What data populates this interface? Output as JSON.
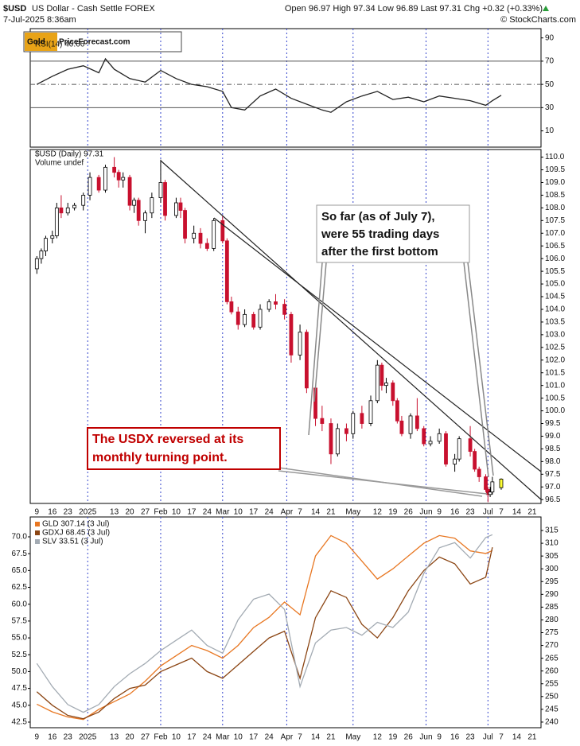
{
  "header": {
    "symbol": "$USD",
    "name": "US Dollar - Cash Settle FOREX",
    "datetime": "7-Jul-2025 8:36am",
    "quote": "Open 96.97  High 97.34  Low 96.89  Last 97.31  Chg +0.32 (+0.33%)",
    "source": "© StockCharts.com"
  },
  "logo": {
    "gold": "Gold",
    "rest": "PriceForecast.com"
  },
  "annotations": {
    "callout": [
      "So far (as of July 7),",
      "were 55 trading days",
      "after the first bottom"
    ],
    "reversal": [
      "The USDX reversed at its",
      "monthly turning point."
    ]
  },
  "chart_data": [
    {
      "type": "line",
      "title": "RSI(14) 40.66",
      "ylim": [
        -4,
        98
      ],
      "yticks": [
        10,
        30,
        50,
        70,
        90
      ],
      "hlines": [
        {
          "value": 70,
          "style": "solid"
        },
        {
          "value": 50,
          "style": "dashdot"
        },
        {
          "value": 30,
          "style": "solid"
        }
      ],
      "x": [
        0,
        7,
        14,
        21,
        28,
        31,
        35,
        42,
        49,
        56,
        63,
        70,
        77,
        84,
        88,
        94,
        101,
        108,
        115,
        122,
        129,
        133,
        140,
        147,
        154,
        161,
        168,
        175,
        182,
        189,
        196,
        203,
        206,
        210
      ],
      "series": [
        {
          "name": "RSI(14)",
          "color": "#222222",
          "values": [
            50,
            57,
            63,
            66,
            60,
            72,
            63,
            55,
            52,
            62,
            55,
            50,
            48,
            44,
            30,
            28,
            40,
            46,
            38,
            33,
            28,
            26,
            35,
            40,
            44,
            37,
            39,
            35,
            40,
            38,
            36,
            32,
            36,
            40.66
          ]
        }
      ]
    },
    {
      "type": "candlestick",
      "title": "$USD (Daily) 97.31",
      "subtitle": "Volume undef",
      "up_color": "#ffffff",
      "down_color": "#c8102e",
      "last_color": "#ffff33",
      "xlim": [
        -3,
        228
      ],
      "xticks": [
        {
          "value": 0,
          "label": "9"
        },
        {
          "value": 7,
          "label": "16"
        },
        {
          "value": 14,
          "label": "23"
        },
        {
          "value": 23,
          "label": "2025",
          "major": true
        },
        {
          "value": 35,
          "label": "13"
        },
        {
          "value": 42,
          "label": "20"
        },
        {
          "value": 49,
          "label": "27"
        },
        {
          "value": 56,
          "label": "Feb",
          "major": true
        },
        {
          "value": 63,
          "label": "10"
        },
        {
          "value": 70,
          "label": "17"
        },
        {
          "value": 77,
          "label": "24"
        },
        {
          "value": 84,
          "label": "Mar",
          "major": true
        },
        {
          "value": 91,
          "label": "10"
        },
        {
          "value": 98,
          "label": "17"
        },
        {
          "value": 105,
          "label": "24"
        },
        {
          "value": 113,
          "label": "Apr",
          "major": true
        },
        {
          "value": 119,
          "label": "7"
        },
        {
          "value": 126,
          "label": "14"
        },
        {
          "value": 133,
          "label": "21"
        },
        {
          "value": 143,
          "label": "May",
          "major": true
        },
        {
          "value": 154,
          "label": "12"
        },
        {
          "value": 161,
          "label": "19"
        },
        {
          "value": 168,
          "label": "26"
        },
        {
          "value": 176,
          "label": "Jun",
          "major": true
        },
        {
          "value": 182,
          "label": "9"
        },
        {
          "value": 189,
          "label": "16"
        },
        {
          "value": 196,
          "label": "23"
        },
        {
          "value": 204,
          "label": "Jul",
          "major": true
        },
        {
          "value": 210,
          "label": "7"
        },
        {
          "value": 217,
          "label": "14"
        },
        {
          "value": 224,
          "label": "21"
        }
      ],
      "ylim": [
        96.35,
        110.3
      ],
      "yticks": [
        96.5,
        {
          "value": 97,
          "label": "97.0"
        },
        97.5,
        {
          "value": 98,
          "label": "98.0"
        },
        98.5,
        {
          "value": 99,
          "label": "99.0"
        },
        99.5,
        {
          "value": 100,
          "label": "100.0"
        },
        100.5,
        {
          "value": 101,
          "label": "101.0"
        },
        101.5,
        {
          "value": 102,
          "label": "102.0"
        },
        102.5,
        {
          "value": 103,
          "label": "103.0"
        },
        103.5,
        {
          "value": 104,
          "label": "104.0"
        },
        104.5,
        {
          "value": 105,
          "label": "105.0"
        },
        105.5,
        {
          "value": 106,
          "label": "106.0"
        },
        106.5,
        {
          "value": 107,
          "label": "107.0"
        },
        107.5,
        {
          "value": 108,
          "label": "108.0"
        },
        108.5,
        {
          "value": 109,
          "label": "109.0"
        },
        109.5,
        {
          "value": 110,
          "label": "110.0"
        }
      ],
      "candles": {
        "x": [
          0,
          2,
          4,
          7,
          9,
          11,
          14,
          17,
          21,
          24,
          28,
          31,
          35,
          37,
          39,
          42,
          44,
          46,
          49,
          52,
          56,
          58,
          63,
          65,
          67,
          71,
          74,
          77,
          80,
          84,
          86,
          88,
          91,
          94,
          98,
          101,
          105,
          108,
          112,
          115,
          119,
          122,
          126,
          129,
          133,
          136,
          140,
          143,
          147,
          151,
          154,
          156,
          158,
          161,
          163,
          165,
          169,
          172,
          175,
          178,
          182,
          185,
          189,
          191,
          196,
          198,
          200,
          203,
          204,
          205,
          206,
          210
        ],
        "open": [
          105.6,
          106.0,
          106.3,
          106.8,
          106.9,
          108.0,
          107.8,
          108.0,
          108.1,
          108.5,
          109.2,
          108.7,
          109.6,
          109.4,
          109.1,
          109.2,
          108.1,
          108.3,
          107.5,
          107.8,
          108.4,
          109.0,
          107.7,
          108.2,
          107.9,
          106.8,
          107.0,
          106.6,
          106.4,
          107.5,
          106.7,
          104.3,
          103.9,
          103.4,
          103.8,
          103.3,
          104.0,
          104.3,
          104.2,
          103.8,
          102.2,
          103.1,
          100.9,
          99.7,
          99.5,
          98.3,
          99.3,
          99.1,
          99.9,
          99.5,
          100.4,
          101.8,
          101.0,
          101.1,
          100.4,
          99.6,
          99.1,
          99.8,
          99.3,
          98.7,
          98.8,
          99.1,
          97.9,
          98.1,
          98.9,
          98.4,
          97.7,
          97.4,
          96.9,
          96.7,
          96.8,
          96.97
        ],
        "high": [
          106.1,
          106.4,
          106.9,
          107.1,
          108.2,
          108.5,
          108.2,
          108.2,
          108.6,
          109.4,
          109.3,
          109.7,
          110.0,
          109.5,
          109.4,
          109.3,
          108.4,
          108.4,
          107.9,
          108.6,
          109.9,
          109.1,
          108.4,
          108.4,
          108.0,
          107.3,
          107.2,
          106.8,
          107.6,
          107.7,
          106.8,
          104.5,
          104.1,
          104.0,
          103.9,
          104.2,
          104.4,
          104.6,
          104.4,
          103.9,
          103.4,
          103.2,
          101.0,
          100.2,
          99.7,
          99.5,
          99.5,
          100.0,
          100.2,
          100.6,
          102.0,
          101.9,
          101.3,
          101.2,
          100.5,
          99.8,
          99.9,
          100.5,
          99.4,
          99.0,
          99.3,
          99.2,
          98.3,
          99.0,
          99.4,
          98.5,
          97.8,
          97.5,
          97.0,
          97.0,
          97.4,
          97.34
        ],
        "low": [
          105.4,
          105.8,
          106.1,
          106.6,
          106.8,
          107.6,
          107.7,
          107.9,
          107.9,
          108.3,
          108.6,
          108.6,
          109.2,
          108.8,
          108.8,
          107.9,
          107.8,
          107.3,
          107.0,
          107.6,
          108.2,
          107.5,
          107.6,
          107.6,
          106.6,
          106.6,
          106.4,
          106.3,
          106.3,
          106.6,
          104.2,
          103.8,
          103.2,
          103.3,
          103.2,
          103.2,
          103.9,
          104.0,
          103.6,
          101.9,
          102.0,
          100.7,
          99.4,
          99.2,
          97.9,
          98.2,
          98.8,
          98.9,
          99.3,
          99.4,
          100.3,
          100.8,
          100.7,
          100.2,
          99.5,
          99.0,
          98.9,
          99.2,
          98.6,
          98.6,
          98.7,
          97.8,
          97.6,
          98.0,
          98.2,
          97.6,
          97.2,
          96.8,
          96.4,
          96.6,
          96.7,
          96.89
        ],
        "close": [
          106.0,
          106.3,
          106.8,
          106.9,
          108.0,
          107.8,
          108.0,
          108.1,
          108.5,
          109.2,
          108.7,
          109.6,
          109.4,
          109.1,
          109.2,
          108.1,
          108.3,
          107.5,
          107.8,
          108.4,
          109.0,
          107.7,
          108.2,
          107.9,
          106.8,
          107.0,
          106.6,
          106.4,
          107.5,
          106.7,
          104.3,
          103.9,
          103.4,
          103.8,
          103.3,
          104.0,
          104.3,
          104.2,
          103.8,
          102.2,
          103.1,
          100.9,
          99.7,
          99.5,
          98.3,
          99.3,
          99.1,
          99.9,
          99.5,
          100.4,
          101.8,
          101.0,
          101.1,
          100.4,
          99.6,
          99.1,
          99.8,
          99.3,
          98.7,
          98.8,
          99.1,
          97.9,
          98.1,
          98.9,
          98.4,
          97.7,
          97.4,
          96.9,
          96.7,
          96.8,
          97.2,
          97.31
        ]
      }
    },
    {
      "type": "line",
      "ylim": [
        41.67,
        72.95
      ],
      "yticks": [
        42.5,
        {
          "value": 45,
          "label": "45.0"
        },
        47.5,
        {
          "value": 50,
          "label": "50.0"
        },
        52.5,
        {
          "value": 55,
          "label": "55.0"
        },
        57.5,
        {
          "value": 60,
          "label": "60.0"
        },
        62.5,
        {
          "value": 65,
          "label": "65.0"
        },
        67.5,
        {
          "value": 70,
          "label": "70.0"
        }
      ],
      "y2lim": [
        237.8,
        320.3
      ],
      "y2ticks": [
        240,
        245,
        250,
        255,
        260,
        265,
        270,
        275,
        280,
        285,
        290,
        295,
        300,
        305,
        310,
        315
      ],
      "y3lim": [
        26.0,
        34.2
      ],
      "x": [
        0,
        7,
        14,
        21,
        28,
        35,
        42,
        49,
        56,
        63,
        70,
        77,
        84,
        91,
        98,
        105,
        112,
        119,
        126,
        133,
        140,
        147,
        154,
        161,
        168,
        175,
        182,
        189,
        196,
        203,
        206
      ],
      "series": [
        {
          "name": "GLD 307.14 (3 Jul)",
          "color": "#e87722",
          "axis": "y2",
          "values": [
            247,
            244,
            242,
            241,
            245,
            248,
            251,
            256,
            262,
            266,
            270,
            268,
            265,
            270,
            277,
            281,
            287,
            282,
            305,
            313,
            310,
            303,
            296,
            300,
            305,
            310,
            313,
            312,
            307,
            306,
            307.14
          ]
        },
        {
          "name": "GDXJ 68.45 (3 Jul)",
          "color": "#8b4513",
          "values": [
            47,
            45,
            43.5,
            43,
            44,
            46,
            47.5,
            48,
            50,
            51,
            52,
            50,
            49,
            51,
            53,
            55,
            56,
            49,
            58,
            62,
            61,
            57,
            55,
            58,
            62,
            65,
            67,
            66,
            63,
            64,
            68.45
          ]
        },
        {
          "name": "SLV 33.51 (3 Jul)",
          "color": "#a3abb3",
          "axis": "y3",
          "values": [
            28.5,
            27.6,
            26.9,
            26.6,
            26.9,
            27.6,
            28.1,
            28.5,
            29.0,
            29.4,
            29.8,
            29.2,
            28.9,
            30.2,
            31.0,
            31.2,
            30.6,
            27.6,
            29.3,
            29.8,
            29.9,
            29.6,
            30.1,
            29.9,
            30.5,
            32.0,
            33.0,
            33.2,
            32.6,
            33.4,
            33.51
          ]
        }
      ]
    }
  ]
}
